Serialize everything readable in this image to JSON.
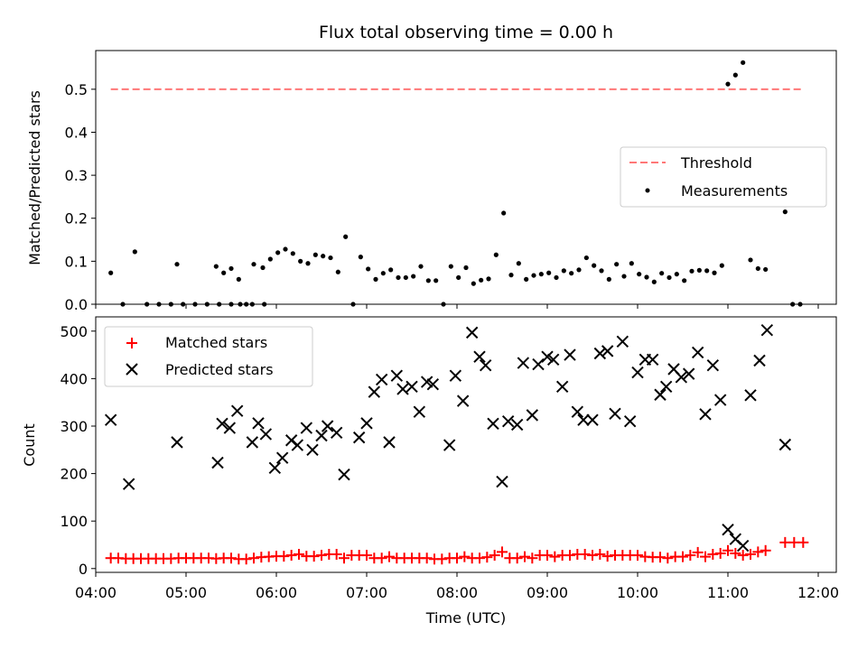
{
  "chart_data": [
    {
      "type": "scatter",
      "title": "Flux total observing time = 0.00 h",
      "xlabel": "",
      "ylabel": "Matched/Predicted stars",
      "xlim_hours": [
        4.0,
        12.2
      ],
      "ylim": [
        0,
        0.59
      ],
      "yticks": [
        "0.0",
        "0.1",
        "0.2",
        "0.3",
        "0.4",
        "0.5"
      ],
      "legend_position": "center-right",
      "threshold": {
        "name": "Threshold",
        "value": 0.5,
        "x_range": [
          "04:10",
          "11:50"
        ],
        "color": "#ff7777",
        "style": "dashed"
      },
      "measurements": {
        "name": "Measurements",
        "color": "#000000",
        "points": [
          [
            "04:10",
            0.073
          ],
          [
            "04:18",
            0.0
          ],
          [
            "04:26",
            0.122
          ],
          [
            "04:34",
            0.0
          ],
          [
            "04:42",
            0.0
          ],
          [
            "04:50",
            0.0
          ],
          [
            "04:58",
            0.0
          ],
          [
            "05:06",
            0.0
          ],
          [
            "05:14",
            0.0
          ],
          [
            "05:22",
            0.0
          ],
          [
            "05:30",
            0.0
          ],
          [
            "04:54",
            0.093
          ],
          [
            "05:36",
            0.0
          ],
          [
            "05:44",
            0.0
          ],
          [
            "05:52",
            0.0
          ],
          [
            "05:20",
            0.088
          ],
          [
            "05:25",
            0.073
          ],
          [
            "05:30",
            0.083
          ],
          [
            "05:35",
            0.058
          ],
          [
            "05:40",
            0.0
          ],
          [
            "05:45",
            0.093
          ],
          [
            "05:51",
            0.085
          ],
          [
            "05:56",
            0.105
          ],
          [
            "06:01",
            0.12
          ],
          [
            "06:06",
            0.128
          ],
          [
            "06:11",
            0.118
          ],
          [
            "06:16",
            0.1
          ],
          [
            "06:21",
            0.095
          ],
          [
            "06:26",
            0.115
          ],
          [
            "06:31",
            0.112
          ],
          [
            "06:36",
            0.108
          ],
          [
            "06:41",
            0.075
          ],
          [
            "06:46",
            0.157
          ],
          [
            "06:51",
            0.0
          ],
          [
            "06:56",
            0.11
          ],
          [
            "07:01",
            0.082
          ],
          [
            "07:06",
            0.058
          ],
          [
            "07:11",
            0.072
          ],
          [
            "07:16",
            0.08
          ],
          [
            "07:21",
            0.062
          ],
          [
            "07:26",
            0.062
          ],
          [
            "07:31",
            0.065
          ],
          [
            "07:36",
            0.088
          ],
          [
            "07:41",
            0.055
          ],
          [
            "07:46",
            0.055
          ],
          [
            "07:51",
            0.0
          ],
          [
            "07:56",
            0.088
          ],
          [
            "08:01",
            0.062
          ],
          [
            "08:06",
            0.085
          ],
          [
            "08:11",
            0.048
          ],
          [
            "08:16",
            0.056
          ],
          [
            "08:21",
            0.059
          ],
          [
            "08:26",
            0.115
          ],
          [
            "08:31",
            0.212
          ],
          [
            "08:36",
            0.068
          ],
          [
            "08:41",
            0.095
          ],
          [
            "08:46",
            0.058
          ],
          [
            "08:51",
            0.067
          ],
          [
            "08:56",
            0.07
          ],
          [
            "09:01",
            0.073
          ],
          [
            "09:06",
            0.062
          ],
          [
            "09:11",
            0.078
          ],
          [
            "09:16",
            0.072
          ],
          [
            "09:21",
            0.08
          ],
          [
            "09:26",
            0.108
          ],
          [
            "09:31",
            0.09
          ],
          [
            "09:36",
            0.078
          ],
          [
            "09:41",
            0.058
          ],
          [
            "09:46",
            0.093
          ],
          [
            "09:51",
            0.065
          ],
          [
            "09:56",
            0.095
          ],
          [
            "10:01",
            0.07
          ],
          [
            "10:06",
            0.063
          ],
          [
            "10:11",
            0.052
          ],
          [
            "10:16",
            0.072
          ],
          [
            "10:21",
            0.062
          ],
          [
            "10:26",
            0.07
          ],
          [
            "10:31",
            0.055
          ],
          [
            "10:36",
            0.077
          ],
          [
            "10:41",
            0.079
          ],
          [
            "10:46",
            0.078
          ],
          [
            "10:51",
            0.073
          ],
          [
            "10:56",
            0.09
          ],
          [
            "11:00",
            0.512
          ],
          [
            "11:05",
            0.533
          ],
          [
            "11:10",
            0.562
          ],
          [
            "11:15",
            0.103
          ],
          [
            "11:20",
            0.083
          ],
          [
            "11:25",
            0.081
          ],
          [
            "11:38",
            0.215
          ],
          [
            "11:43",
            0.0
          ],
          [
            "11:48",
            0.0
          ]
        ]
      }
    },
    {
      "type": "scatter",
      "title": "",
      "xlabel": "Time (UTC)",
      "ylabel": "Count",
      "xlim_hours": [
        4.0,
        12.2
      ],
      "ylim": [
        -8,
        530
      ],
      "yticks": [
        "0",
        "100",
        "200",
        "300",
        "400",
        "500"
      ],
      "xticks": [
        "04:00",
        "05:00",
        "06:00",
        "07:00",
        "08:00",
        "09:00",
        "10:00",
        "11:00",
        "12:00"
      ],
      "legend_position": "upper-left",
      "series": [
        {
          "name": "Matched stars",
          "marker": "+",
          "color": "#ff0000",
          "points": [
            [
              "04:10",
              22
            ],
            [
              "04:15",
              22
            ],
            [
              "04:20",
              21
            ],
            [
              "04:25",
              21
            ],
            [
              "04:30",
              21
            ],
            [
              "04:35",
              21
            ],
            [
              "04:40",
              21
            ],
            [
              "04:45",
              21
            ],
            [
              "04:50",
              21
            ],
            [
              "04:55",
              22
            ],
            [
              "05:00",
              22
            ],
            [
              "05:05",
              22
            ],
            [
              "05:10",
              22
            ],
            [
              "05:15",
              22
            ],
            [
              "05:20",
              21
            ],
            [
              "05:25",
              22
            ],
            [
              "05:30",
              22
            ],
            [
              "05:35",
              20
            ],
            [
              "05:40",
              20
            ],
            [
              "05:45",
              22
            ],
            [
              "05:50",
              24
            ],
            [
              "05:55",
              25
            ],
            [
              "06:00",
              26
            ],
            [
              "06:05",
              26
            ],
            [
              "06:10",
              28
            ],
            [
              "06:15",
              30
            ],
            [
              "06:20",
              26
            ],
            [
              "06:25",
              26
            ],
            [
              "06:30",
              28
            ],
            [
              "06:35",
              30
            ],
            [
              "06:40",
              30
            ],
            [
              "06:45",
              22
            ],
            [
              "06:50",
              28
            ],
            [
              "06:55",
              28
            ],
            [
              "07:00",
              28
            ],
            [
              "07:05",
              22
            ],
            [
              "07:10",
              22
            ],
            [
              "07:15",
              25
            ],
            [
              "07:20",
              22
            ],
            [
              "07:25",
              22
            ],
            [
              "07:30",
              22
            ],
            [
              "07:35",
              22
            ],
            [
              "07:40",
              22
            ],
            [
              "07:45",
              20
            ],
            [
              "07:50",
              20
            ],
            [
              "07:55",
              22
            ],
            [
              "08:00",
              22
            ],
            [
              "08:05",
              25
            ],
            [
              "08:10",
              22
            ],
            [
              "08:15",
              22
            ],
            [
              "08:20",
              24
            ],
            [
              "08:25",
              28
            ],
            [
              "08:30",
              35
            ],
            [
              "08:35",
              22
            ],
            [
              "08:40",
              22
            ],
            [
              "08:45",
              25
            ],
            [
              "08:50",
              22
            ],
            [
              "08:55",
              28
            ],
            [
              "09:00",
              28
            ],
            [
              "09:05",
              25
            ],
            [
              "09:10",
              28
            ],
            [
              "09:15",
              28
            ],
            [
              "09:20",
              30
            ],
            [
              "09:25",
              30
            ],
            [
              "09:30",
              28
            ],
            [
              "09:35",
              30
            ],
            [
              "09:40",
              26
            ],
            [
              "09:45",
              28
            ],
            [
              "09:50",
              28
            ],
            [
              "09:55",
              28
            ],
            [
              "10:00",
              28
            ],
            [
              "10:05",
              25
            ],
            [
              "10:10",
              24
            ],
            [
              "10:15",
              24
            ],
            [
              "10:20",
              22
            ],
            [
              "10:25",
              25
            ],
            [
              "10:30",
              25
            ],
            [
              "10:35",
              28
            ],
            [
              "10:40",
              34
            ],
            [
              "10:45",
              25
            ],
            [
              "10:50",
              30
            ],
            [
              "10:55",
              32
            ],
            [
              "11:00",
              38
            ],
            [
              "11:05",
              32
            ],
            [
              "11:10",
              28
            ],
            [
              "11:15",
              30
            ],
            [
              "11:20",
              35
            ],
            [
              "11:25",
              38
            ],
            [
              "11:38",
              55
            ],
            [
              "11:44",
              55
            ],
            [
              "11:50",
              55
            ]
          ]
        },
        {
          "name": "Predicted stars",
          "marker": "x",
          "color": "#000000",
          "points": [
            [
              "04:10",
              313
            ],
            [
              "04:22",
              178
            ],
            [
              "04:54",
              266
            ],
            [
              "05:21",
              223
            ],
            [
              "05:24",
              305
            ],
            [
              "05:29",
              296
            ],
            [
              "05:34",
              332
            ],
            [
              "05:44",
              266
            ],
            [
              "05:48",
              306
            ],
            [
              "05:53",
              283
            ],
            [
              "05:59",
              212
            ],
            [
              "06:04",
              233
            ],
            [
              "06:10",
              270
            ],
            [
              "06:14",
              260
            ],
            [
              "06:20",
              296
            ],
            [
              "06:24",
              250
            ],
            [
              "06:30",
              280
            ],
            [
              "06:34",
              300
            ],
            [
              "06:40",
              286
            ],
            [
              "06:45",
              198
            ],
            [
              "06:55",
              276
            ],
            [
              "07:00",
              306
            ],
            [
              "07:05",
              372
            ],
            [
              "07:10",
              398
            ],
            [
              "07:15",
              266
            ],
            [
              "07:20",
              406
            ],
            [
              "07:24",
              378
            ],
            [
              "07:30",
              383
            ],
            [
              "07:35",
              330
            ],
            [
              "07:40",
              393
            ],
            [
              "07:44",
              388
            ],
            [
              "07:55",
              260
            ],
            [
              "07:59",
              406
            ],
            [
              "08:04",
              353
            ],
            [
              "08:10",
              497
            ],
            [
              "08:15",
              446
            ],
            [
              "08:19",
              428
            ],
            [
              "08:24",
              305
            ],
            [
              "08:30",
              183
            ],
            [
              "08:34",
              310
            ],
            [
              "08:40",
              303
            ],
            [
              "08:44",
              433
            ],
            [
              "08:50",
              323
            ],
            [
              "08:54",
              430
            ],
            [
              "09:00",
              446
            ],
            [
              "09:04",
              440
            ],
            [
              "09:10",
              383
            ],
            [
              "09:15",
              450
            ],
            [
              "09:20",
              330
            ],
            [
              "09:24",
              313
            ],
            [
              "09:30",
              313
            ],
            [
              "09:35",
              453
            ],
            [
              "09:40",
              458
            ],
            [
              "09:45",
              326
            ],
            [
              "09:50",
              478
            ],
            [
              "09:55",
              310
            ],
            [
              "10:00",
              413
            ],
            [
              "10:05",
              440
            ],
            [
              "10:10",
              440
            ],
            [
              "10:15",
              366
            ],
            [
              "10:19",
              383
            ],
            [
              "10:24",
              420
            ],
            [
              "10:29",
              403
            ],
            [
              "10:34",
              410
            ],
            [
              "10:40",
              455
            ],
            [
              "10:45",
              325
            ],
            [
              "10:50",
              428
            ],
            [
              "10:55",
              355
            ],
            [
              "11:00",
              82
            ],
            [
              "11:05",
              62
            ],
            [
              "11:10",
              48
            ],
            [
              "11:15",
              365
            ],
            [
              "11:21",
              438
            ],
            [
              "11:26",
              502
            ],
            [
              "11:38",
              261
            ]
          ]
        }
      ]
    }
  ]
}
